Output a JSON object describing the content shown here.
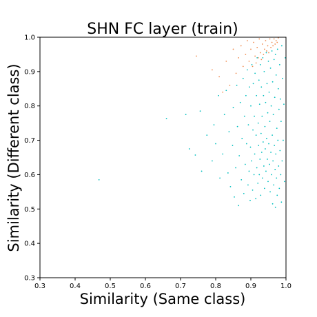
{
  "chart_data": {
    "type": "scatter",
    "title": "SHN FC layer  (train)",
    "xlabel": "Similarity (Same class)",
    "ylabel": "Similarity (Different class)",
    "xlim": [
      0.3,
      1.0
    ],
    "ylim": [
      0.3,
      1.0
    ],
    "xticks": [
      "0.3",
      "0.4",
      "0.5",
      "0.6",
      "0.7",
      "0.8",
      "0.9",
      "1.0"
    ],
    "yticks": [
      "0.3",
      "0.4",
      "0.5",
      "0.6",
      "0.7",
      "0.8",
      "0.9",
      "1.0"
    ],
    "grid": false,
    "series": [
      {
        "color": "#00bfbf",
        "points": [
          [
            0.468,
            0.585
          ],
          [
            0.66,
            0.763
          ],
          [
            0.715,
            0.775
          ],
          [
            0.725,
            0.675
          ],
          [
            0.742,
            0.657
          ],
          [
            0.756,
            0.785
          ],
          [
            0.76,
            0.61
          ],
          [
            0.775,
            0.715
          ],
          [
            0.79,
            0.64
          ],
          [
            0.795,
            0.745
          ],
          [
            0.8,
            0.69
          ],
          [
            0.808,
            0.83
          ],
          [
            0.812,
            0.59
          ],
          [
            0.82,
            0.66
          ],
          [
            0.825,
            0.775
          ],
          [
            0.83,
            0.845
          ],
          [
            0.835,
            0.605
          ],
          [
            0.838,
            0.725
          ],
          [
            0.842,
            0.565
          ],
          [
            0.848,
            0.685
          ],
          [
            0.85,
            0.795
          ],
          [
            0.853,
            0.535
          ],
          [
            0.857,
            0.62
          ],
          [
            0.86,
            0.86
          ],
          [
            0.862,
            0.74
          ],
          [
            0.865,
            0.51
          ],
          [
            0.867,
            0.655
          ],
          [
            0.87,
            0.81
          ],
          [
            0.873,
            0.585
          ],
          [
            0.875,
            0.705
          ],
          [
            0.878,
            0.88
          ],
          [
            0.88,
            0.545
          ],
          [
            0.882,
            0.77
          ],
          [
            0.884,
            0.63
          ],
          [
            0.886,
            0.83
          ],
          [
            0.888,
            0.69
          ],
          [
            0.89,
            0.905
          ],
          [
            0.892,
            0.57
          ],
          [
            0.893,
            0.745
          ],
          [
            0.895,
            0.61
          ],
          [
            0.896,
            0.855
          ],
          [
            0.898,
            0.525
          ],
          [
            0.899,
            0.68
          ],
          [
            0.9,
            0.8
          ],
          [
            0.902,
            0.64
          ],
          [
            0.903,
            0.92
          ],
          [
            0.905,
            0.555
          ],
          [
            0.906,
            0.73
          ],
          [
            0.907,
            0.865
          ],
          [
            0.909,
            0.6
          ],
          [
            0.91,
            0.77
          ],
          [
            0.911,
            0.66
          ],
          [
            0.912,
            0.895
          ],
          [
            0.914,
            0.53
          ],
          [
            0.915,
            0.715
          ],
          [
            0.916,
            0.83
          ],
          [
            0.917,
            0.62
          ],
          [
            0.918,
            0.94
          ],
          [
            0.92,
            0.575
          ],
          [
            0.921,
            0.75
          ],
          [
            0.922,
            0.685
          ],
          [
            0.923,
            0.875
          ],
          [
            0.924,
            0.6
          ],
          [
            0.925,
            0.805
          ],
          [
            0.926,
            0.645
          ],
          [
            0.927,
            0.92
          ],
          [
            0.928,
            0.54
          ],
          [
            0.929,
            0.72
          ],
          [
            0.93,
            0.855
          ],
          [
            0.931,
            0.665
          ],
          [
            0.932,
            0.77
          ],
          [
            0.933,
            0.59
          ],
          [
            0.934,
            0.94
          ],
          [
            0.935,
            0.695
          ],
          [
            0.936,
            0.83
          ],
          [
            0.937,
            0.625
          ],
          [
            0.938,
            0.9
          ],
          [
            0.939,
            0.56
          ],
          [
            0.94,
            0.74
          ],
          [
            0.941,
            0.675
          ],
          [
            0.942,
            0.81
          ],
          [
            0.943,
            0.61
          ],
          [
            0.944,
            0.955
          ],
          [
            0.945,
            0.705
          ],
          [
            0.946,
            0.865
          ],
          [
            0.947,
            0.645
          ],
          [
            0.948,
            0.78
          ],
          [
            0.949,
            0.58
          ],
          [
            0.95,
            0.93
          ],
          [
            0.951,
            0.69
          ],
          [
            0.952,
            0.84
          ],
          [
            0.953,
            0.63
          ],
          [
            0.954,
            0.755
          ],
          [
            0.955,
            0.55
          ],
          [
            0.956,
            0.91
          ],
          [
            0.957,
            0.665
          ],
          [
            0.958,
            0.8
          ],
          [
            0.959,
            0.6
          ],
          [
            0.96,
            0.96
          ],
          [
            0.961,
            0.715
          ],
          [
            0.962,
            0.87
          ],
          [
            0.963,
            0.64
          ],
          [
            0.964,
            0.775
          ],
          [
            0.965,
            0.57
          ],
          [
            0.966,
            0.935
          ],
          [
            0.967,
            0.685
          ],
          [
            0.968,
            0.825
          ],
          [
            0.969,
            0.615
          ],
          [
            0.97,
            0.95
          ],
          [
            0.971,
            0.66
          ],
          [
            0.972,
            0.89
          ],
          [
            0.973,
            0.59
          ],
          [
            0.974,
            0.735
          ],
          [
            0.975,
            0.54
          ],
          [
            0.976,
            0.965
          ],
          [
            0.977,
            0.7
          ],
          [
            0.978,
            0.85
          ],
          [
            0.979,
            0.625
          ],
          [
            0.98,
            0.79
          ],
          [
            0.981,
            0.56
          ],
          [
            0.982,
            0.92
          ],
          [
            0.983,
            0.67
          ],
          [
            0.984,
            0.82
          ],
          [
            0.985,
            0.6
          ],
          [
            0.986,
            0.755
          ],
          [
            0.987,
            0.52
          ],
          [
            0.988,
            0.975
          ],
          [
            0.989,
            0.64
          ],
          [
            0.99,
            0.88
          ],
          [
            0.992,
            0.7
          ],
          [
            0.994,
            0.805
          ],
          [
            0.996,
            0.58
          ],
          [
            0.998,
            0.94
          ],
          [
            0.97,
            0.505
          ],
          [
            0.962,
            0.515
          ]
        ]
      },
      {
        "color": "#f08c50",
        "points": [
          [
            0.745,
            0.945
          ],
          [
            0.79,
            0.905
          ],
          [
            0.81,
            0.885
          ],
          [
            0.83,
            0.93
          ],
          [
            0.84,
            0.86
          ],
          [
            0.85,
            0.965
          ],
          [
            0.858,
            0.895
          ],
          [
            0.865,
            0.94
          ],
          [
            0.872,
            0.975
          ],
          [
            0.878,
            0.915
          ],
          [
            0.885,
            0.95
          ],
          [
            0.89,
            0.99
          ],
          [
            0.895,
            0.93
          ],
          [
            0.9,
            0.965
          ],
          [
            0.905,
            0.915
          ],
          [
            0.908,
            0.985
          ],
          [
            0.912,
            0.945
          ],
          [
            0.915,
            0.925
          ],
          [
            0.918,
            0.97
          ],
          [
            0.921,
            0.94
          ],
          [
            0.924,
            0.995
          ],
          [
            0.927,
            0.955
          ],
          [
            0.93,
            0.935
          ],
          [
            0.933,
            0.98
          ],
          [
            0.936,
            0.95
          ],
          [
            0.939,
            0.965
          ],
          [
            0.942,
            0.99
          ],
          [
            0.945,
            0.96
          ],
          [
            0.948,
            0.975
          ],
          [
            0.951,
            0.955
          ],
          [
            0.954,
            0.995
          ],
          [
            0.957,
            0.97
          ],
          [
            0.96,
            0.985
          ],
          [
            0.963,
            0.975
          ],
          [
            0.966,
            0.995
          ],
          [
            0.969,
            0.98
          ],
          [
            0.972,
            0.99
          ],
          [
            0.975,
            0.985
          ],
          [
            0.978,
            0.998
          ],
          [
            0.82,
            0.84
          ]
        ]
      }
    ]
  }
}
